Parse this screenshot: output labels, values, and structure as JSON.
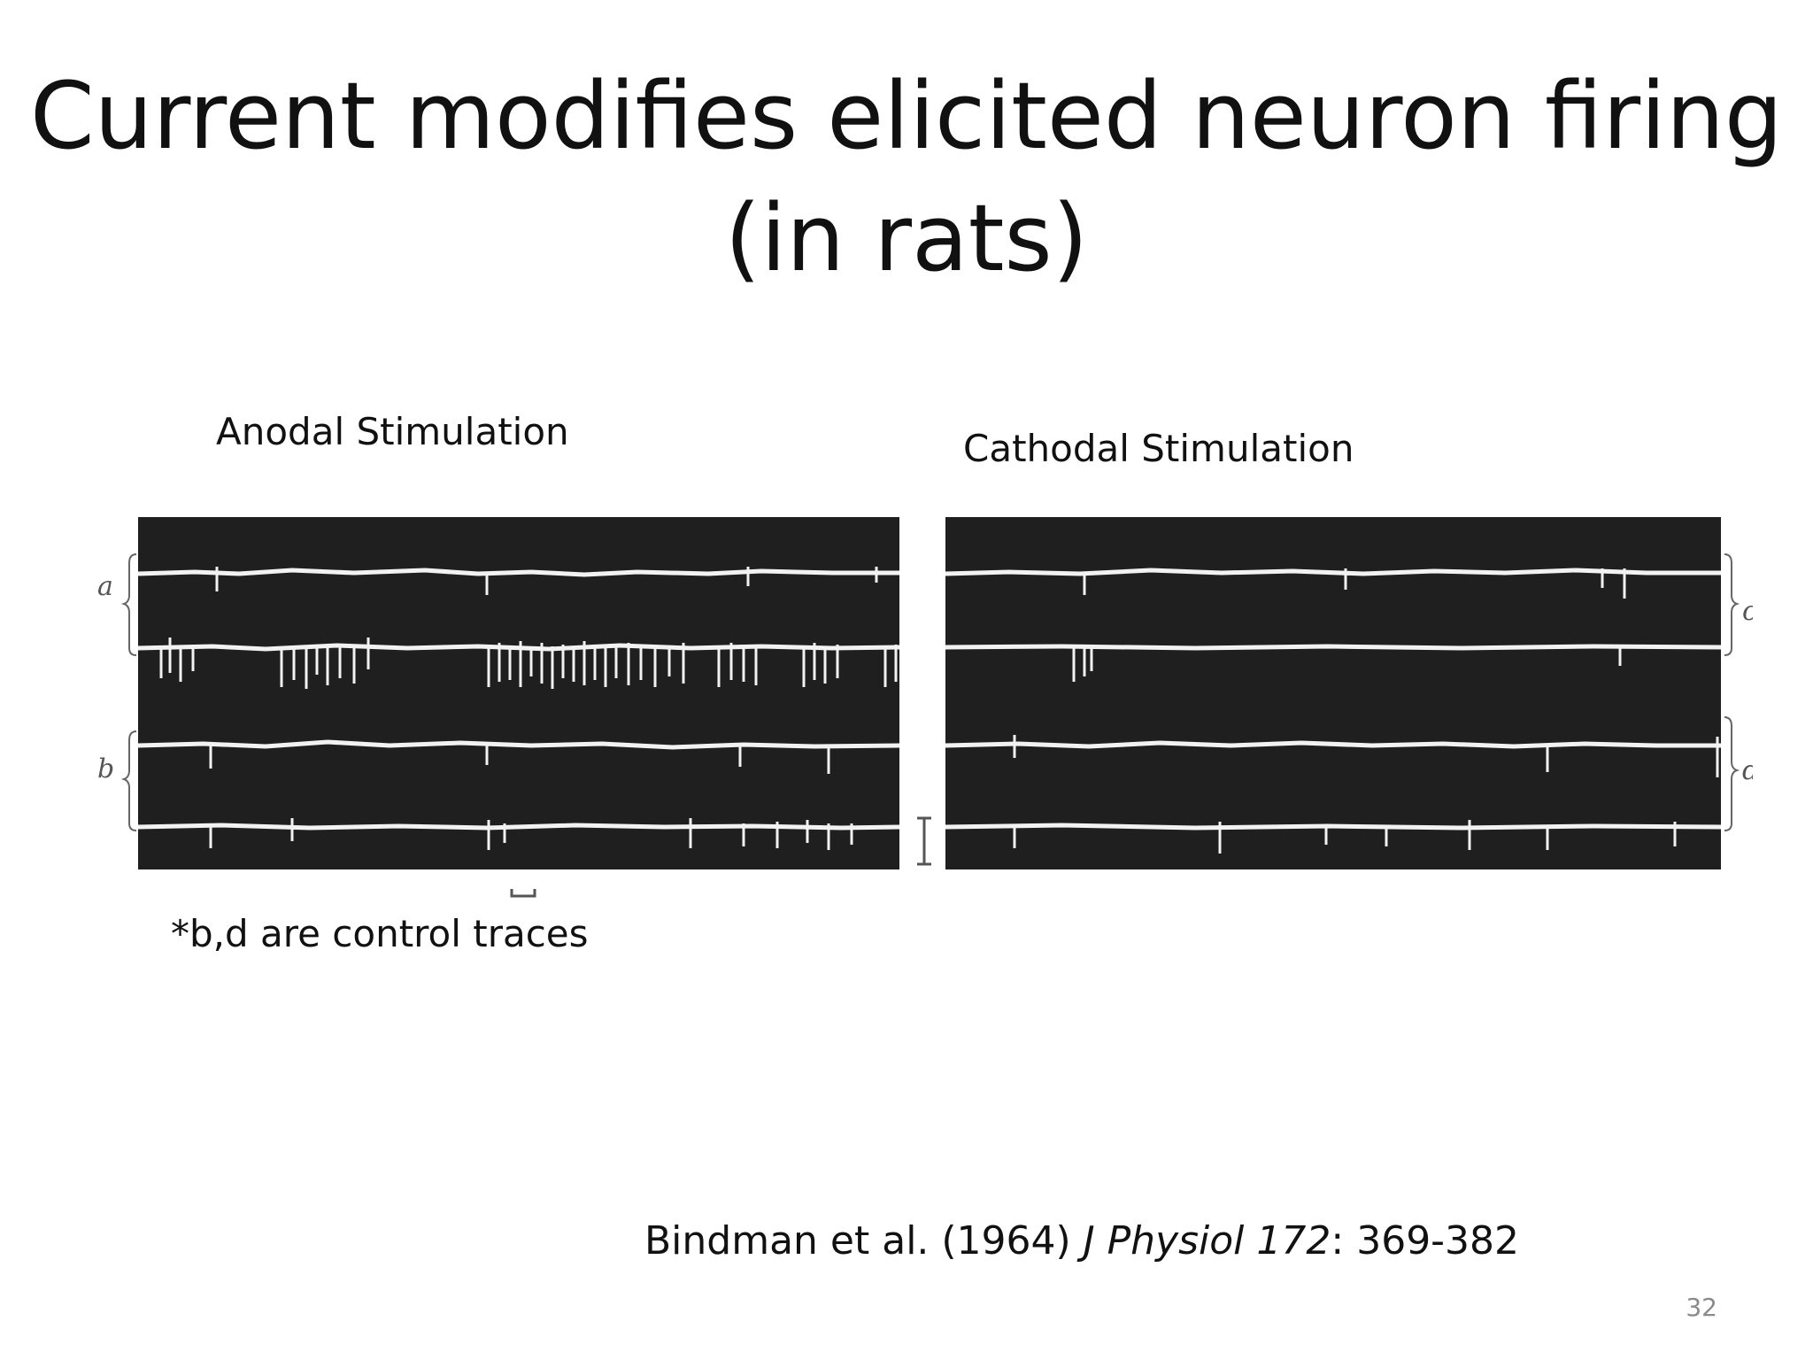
{
  "slide": {
    "title_line1": "Current modifies elicited neuron firing",
    "title_line2": "(in rats)",
    "anodal_label": "Anodal Stimulation",
    "cathodal_label": "Cathodal Stimulation",
    "note": "*b,d are control traces",
    "citation": {
      "authors_year": "Bindman et al. (1964) ",
      "journal": "J Physiol",
      "volume": "172",
      "pages": ": 369-382"
    },
    "page_number": "32"
  },
  "figure": {
    "trace_labels": {
      "a": "a",
      "b": "b",
      "c": "c",
      "d": "d"
    },
    "background_color": "#1f1f1f",
    "trace_color": "#f2f2f2"
  }
}
